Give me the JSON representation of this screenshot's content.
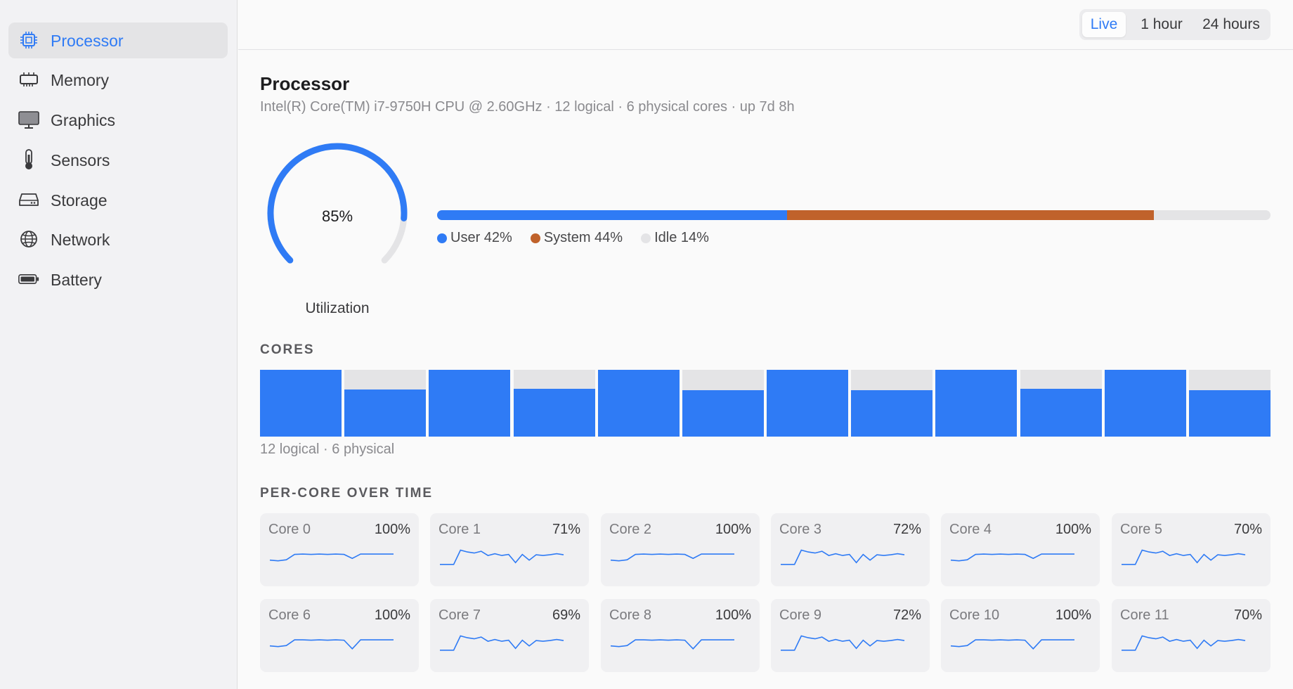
{
  "sidebar": {
    "items": [
      {
        "label": "Processor",
        "icon": "cpu-icon",
        "active": true
      },
      {
        "label": "Memory",
        "icon": "memory-icon",
        "active": false
      },
      {
        "label": "Graphics",
        "icon": "monitor-icon",
        "active": false
      },
      {
        "label": "Sensors",
        "icon": "thermometer-icon",
        "active": false
      },
      {
        "label": "Storage",
        "icon": "drive-icon",
        "active": false
      },
      {
        "label": "Network",
        "icon": "globe-icon",
        "active": false
      },
      {
        "label": "Battery",
        "icon": "battery-icon",
        "active": false
      }
    ]
  },
  "header": {
    "ranges": [
      {
        "label": "Live",
        "active": true
      },
      {
        "label": "1 hour",
        "active": false
      },
      {
        "label": "24 hours",
        "active": false
      }
    ]
  },
  "main": {
    "title": "Processor",
    "subtitle": "Intel(R) Core(TM) i7-9750H CPU @ 2.60GHz  ·  12 logical · 6 physical cores  ·  up 7d 8h",
    "utilization": {
      "value": 85,
      "value_text": "85%",
      "label": "Utilization"
    },
    "breakdown": [
      {
        "label": "User 42%",
        "value": 42,
        "color": "#2f7bf5"
      },
      {
        "label": "System 44%",
        "value": 44,
        "color": "#c0622b"
      },
      {
        "label": "Idle 14%",
        "value": 14,
        "color": "#e4e4e6"
      }
    ],
    "cores_title": "CORES",
    "cores_caption": "12 logical · 6 physical",
    "per_core_title": "PER-CORE OVER TIME",
    "cores": [
      {
        "name": "Core 0",
        "value": 100,
        "value_text": "100%",
        "history": [
          42,
          40,
          43,
          58,
          59,
          58,
          59,
          58,
          59,
          58,
          47,
          59,
          59,
          59,
          59,
          59
        ]
      },
      {
        "name": "Core 1",
        "value": 71,
        "value_text": "71%",
        "history": [
          30,
          30,
          30,
          70,
          65,
          62,
          67,
          55,
          60,
          55,
          58,
          35,
          58,
          42,
          57,
          55,
          57,
          60,
          57
        ]
      },
      {
        "name": "Core 2",
        "value": 100,
        "value_text": "100%",
        "history": [
          42,
          40,
          43,
          58,
          59,
          58,
          59,
          58,
          59,
          58,
          47,
          59,
          59,
          59,
          59,
          59
        ]
      },
      {
        "name": "Core 3",
        "value": 72,
        "value_text": "72%",
        "history": [
          30,
          30,
          30,
          70,
          65,
          62,
          67,
          55,
          60,
          55,
          58,
          35,
          58,
          42,
          57,
          55,
          57,
          60,
          57
        ]
      },
      {
        "name": "Core 4",
        "value": 100,
        "value_text": "100%",
        "history": [
          42,
          40,
          43,
          58,
          59,
          58,
          59,
          58,
          59,
          58,
          47,
          59,
          59,
          59,
          59,
          59
        ]
      },
      {
        "name": "Core 5",
        "value": 70,
        "value_text": "70%",
        "history": [
          30,
          30,
          30,
          70,
          65,
          62,
          67,
          55,
          60,
          55,
          58,
          35,
          58,
          42,
          57,
          55,
          57,
          60,
          57
        ]
      },
      {
        "name": "Core 6",
        "value": 100,
        "value_text": "100%",
        "history": [
          42,
          40,
          43,
          59,
          59,
          58,
          59,
          58,
          59,
          58,
          34,
          59,
          59,
          59,
          59,
          59
        ]
      },
      {
        "name": "Core 7",
        "value": 69,
        "value_text": "69%",
        "history": [
          30,
          30,
          30,
          70,
          65,
          62,
          67,
          55,
          60,
          55,
          58,
          35,
          58,
          42,
          57,
          55,
          57,
          60,
          57
        ]
      },
      {
        "name": "Core 8",
        "value": 100,
        "value_text": "100%",
        "history": [
          42,
          40,
          43,
          59,
          59,
          58,
          59,
          58,
          59,
          58,
          34,
          59,
          59,
          59,
          59,
          59
        ]
      },
      {
        "name": "Core 9",
        "value": 72,
        "value_text": "72%",
        "history": [
          30,
          30,
          30,
          70,
          65,
          62,
          67,
          55,
          60,
          55,
          58,
          35,
          58,
          42,
          57,
          55,
          57,
          60,
          57
        ]
      },
      {
        "name": "Core 10",
        "value": 100,
        "value_text": "100%",
        "history": [
          42,
          40,
          43,
          59,
          59,
          58,
          59,
          58,
          59,
          58,
          34,
          59,
          59,
          59,
          59,
          59
        ]
      },
      {
        "name": "Core 11",
        "value": 70,
        "value_text": "70%",
        "history": [
          30,
          30,
          30,
          70,
          65,
          62,
          67,
          55,
          60,
          55,
          58,
          35,
          58,
          42,
          57,
          55,
          57,
          60,
          57
        ]
      }
    ]
  },
  "colors": {
    "accent": "#2f7bf5",
    "system": "#c0622b",
    "idle": "#e4e4e6"
  }
}
